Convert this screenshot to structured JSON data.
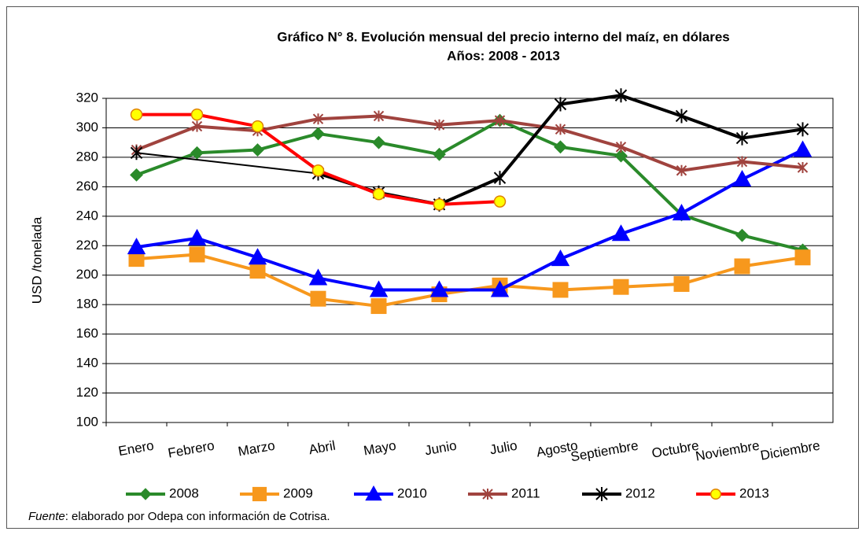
{
  "chart_data": {
    "type": "line",
    "title": "Gráfico N° 8. Evolución mensual del precio interno del maíz,  en dólares",
    "subtitle": "Años: 2008 - 2013",
    "y_label": "USD /tonelada",
    "categories": [
      "Enero",
      "Febrero",
      "Marzo",
      "Abril",
      "Mayo",
      "Junio",
      "Julio",
      "Agosto",
      "Septiembre",
      "Octubre",
      "Noviembre",
      "Diciembre"
    ],
    "series": [
      {
        "name": "2008",
        "color": "#2a8a2a",
        "marker": "diamond",
        "marker_fill": "#2a8a2a",
        "marker_stroke": "#2a8a2a",
        "values": [
          268,
          283,
          285,
          296,
          290,
          282,
          305,
          287,
          281,
          241,
          227,
          217
        ]
      },
      {
        "name": "2009",
        "color": "#f7981d",
        "marker": "square",
        "marker_fill": "#f7981d",
        "marker_stroke": "#f7981d",
        "values": [
          211,
          214,
          203,
          184,
          179,
          187,
          193,
          190,
          192,
          194,
          206,
          212
        ]
      },
      {
        "name": "2010",
        "color": "#0000ff",
        "marker": "triangle",
        "marker_fill": "#0000ff",
        "marker_stroke": "#0000ff",
        "values": [
          219,
          225,
          212,
          198,
          190,
          190,
          190,
          211,
          228,
          242,
          265,
          285
        ]
      },
      {
        "name": "2011",
        "color": "#a0433e",
        "marker": "star",
        "marker_fill": "none",
        "marker_stroke": "#a0433e",
        "values": [
          285,
          301,
          298,
          306,
          308,
          302,
          305,
          299,
          287,
          271,
          277,
          273
        ]
      },
      {
        "name": "2012",
        "color": "#000000",
        "marker": "xstar",
        "marker_fill": "none",
        "marker_stroke": "#000000",
        "values": [
          283,
          null,
          null,
          269,
          256,
          248,
          266,
          316,
          322,
          308,
          293,
          299
        ]
      },
      {
        "name": "2013",
        "color": "#ff0000",
        "marker": "circle",
        "marker_fill": "#ffff00",
        "marker_stroke": "#e08000",
        "values": [
          309,
          309,
          301,
          271,
          255,
          248,
          250,
          null,
          null,
          null,
          null,
          null
        ]
      }
    ],
    "span_gaps": true,
    "ylim": [
      100,
      320
    ],
    "yticks": [
      100,
      120,
      140,
      160,
      180,
      200,
      220,
      240,
      260,
      280,
      300,
      320
    ],
    "grid": true,
    "legend": "bottom",
    "source_label": "Fuente",
    "source_text": ": elaborado por Odepa con información de Cotrisa."
  }
}
